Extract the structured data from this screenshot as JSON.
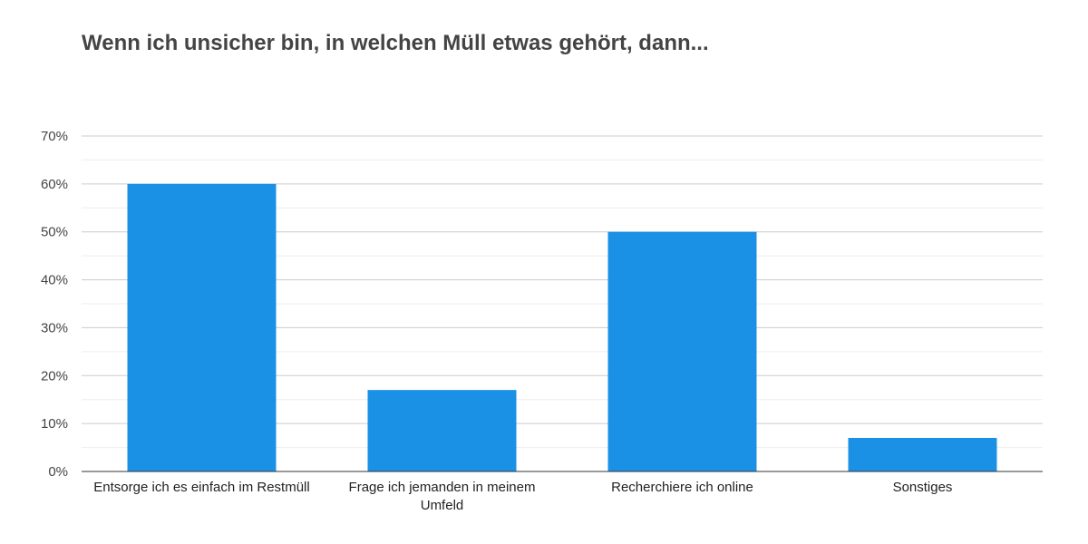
{
  "chart_data": {
    "type": "bar",
    "title": "Wenn ich unsicher bin, in welchen Müll etwas gehört, dann...",
    "xlabel": "",
    "ylabel": "",
    "categories": [
      "Entsorge ich es einfach im Restmüll",
      "Frage ich jemanden in meinem Umfeld",
      "Recherchiere ich online",
      "Sonstiges"
    ],
    "category_lines": [
      [
        "Entsorge ich es einfach im Restmüll"
      ],
      [
        "Frage ich jemanden in meinem",
        "Umfeld"
      ],
      [
        "Recherchiere ich online"
      ],
      [
        "Sonstiges"
      ]
    ],
    "values": [
      60,
      17,
      50,
      7
    ],
    "ylim": [
      0,
      70
    ],
    "yticks": [
      0,
      10,
      20,
      30,
      40,
      50,
      60,
      70
    ],
    "ytick_labels": [
      "0%",
      "10%",
      "20%",
      "30%",
      "40%",
      "50%",
      "60%",
      "70%"
    ],
    "minor_gridlines": true,
    "grid": true,
    "legend": "none",
    "bar_color": "#1b91e6",
    "grid_color": "#cccccc",
    "minor_grid_color": "#eeeeee",
    "axis_color": "#333333"
  }
}
